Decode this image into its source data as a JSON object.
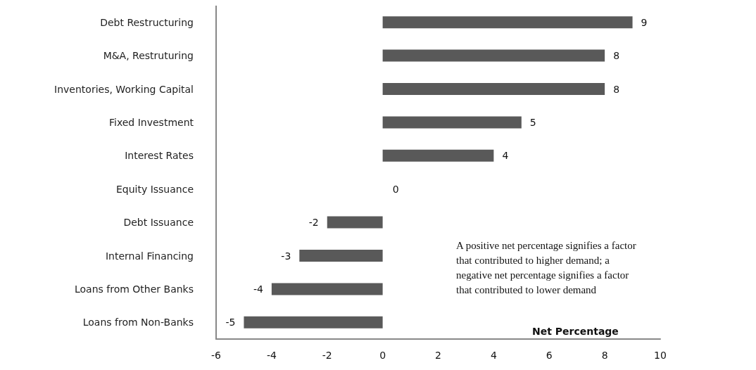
{
  "chart_data": {
    "type": "bar",
    "orientation": "horizontal",
    "xlabel": "Net Percentage",
    "categories": [
      "Debt Restructuring",
      "M&A, Restruturing",
      "Inventories, Working Capital",
      "Fixed Investment",
      "Interest Rates",
      "Equity Issuance",
      "Debt Issuance",
      "Internal Financing",
      "Loans from Other Banks",
      "Loans from Non-Banks"
    ],
    "values": [
      9,
      8,
      8,
      5,
      4,
      0,
      -2,
      -3,
      -4,
      -5
    ],
    "color": "#595959",
    "xlim": [
      -6,
      10
    ],
    "xticks": [
      -6,
      -4,
      -2,
      0,
      2,
      4,
      6,
      8,
      10
    ],
    "data_labels": true,
    "grid": false,
    "annotations": [
      "A positive net percentage signifies a factor that contributed to higher demand; a negative net percentage signifies a factor that contributed to lower demand"
    ]
  }
}
